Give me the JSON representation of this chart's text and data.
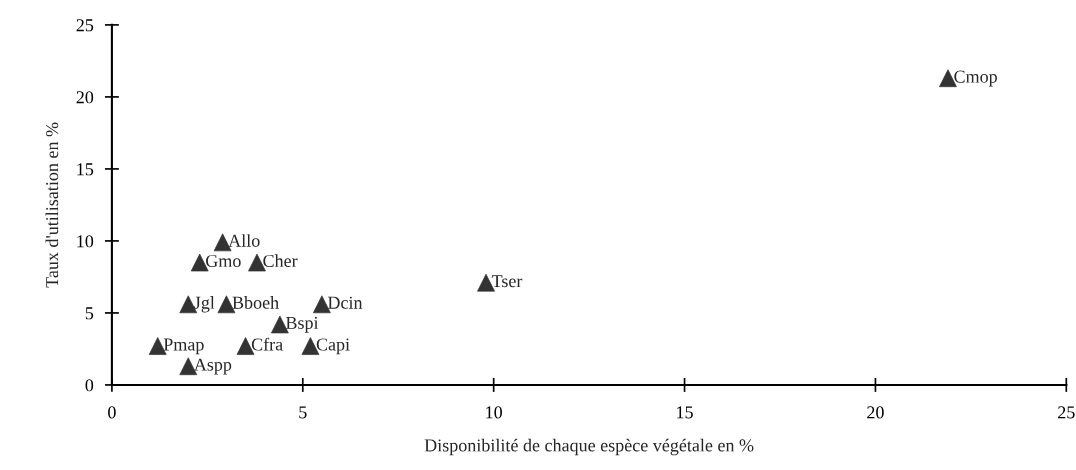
{
  "chart_data": {
    "type": "scatter",
    "xlabel": "Disponibilité de chaque espèce végétale en %",
    "ylabel": "Taux d'utilisation en %",
    "x": [
      2.9,
      2.3,
      3.8,
      2.0,
      3.0,
      5.5,
      4.4,
      1.2,
      3.5,
      5.2,
      2.0,
      9.8,
      21.9
    ],
    "series": [
      {
        "color": "#333333",
        "values": [
          9.9,
          8.5,
          8.5,
          5.6,
          5.6,
          5.6,
          4.2,
          2.7,
          2.7,
          2.7,
          1.3,
          7.1,
          21.3
        ]
      }
    ],
    "annotations": [
      {
        "text": "Allo",
        "x": 2.9,
        "y": 9.9
      },
      {
        "text": "Gmo",
        "x": 2.3,
        "y": 8.5
      },
      {
        "text": "Cher",
        "x": 3.8,
        "y": 8.5
      },
      {
        "text": "Jgl",
        "x": 2.0,
        "y": 5.6
      },
      {
        "text": "Bboeh",
        "x": 3.0,
        "y": 5.6
      },
      {
        "text": "Dcin",
        "x": 5.5,
        "y": 5.6
      },
      {
        "text": "Bspi",
        "x": 4.4,
        "y": 4.2
      },
      {
        "text": "Pmap",
        "x": 1.2,
        "y": 2.7
      },
      {
        "text": "Cfra",
        "x": 3.5,
        "y": 2.7
      },
      {
        "text": "Capi",
        "x": 5.2,
        "y": 2.7
      },
      {
        "text": "Aspp",
        "x": 2.0,
        "y": 1.3
      },
      {
        "text": "Tser",
        "x": 9.8,
        "y": 7.1
      },
      {
        "text": "Cmop",
        "x": 21.9,
        "y": 21.3
      }
    ],
    "xlim": [
      0,
      25
    ],
    "xticks": [
      0,
      5,
      10,
      15,
      20,
      25
    ],
    "ylim": [
      0,
      25
    ],
    "yticks": [
      0,
      5,
      10,
      15,
      20,
      25
    ],
    "marker": "triangle",
    "grid": false,
    "legend": false
  }
}
